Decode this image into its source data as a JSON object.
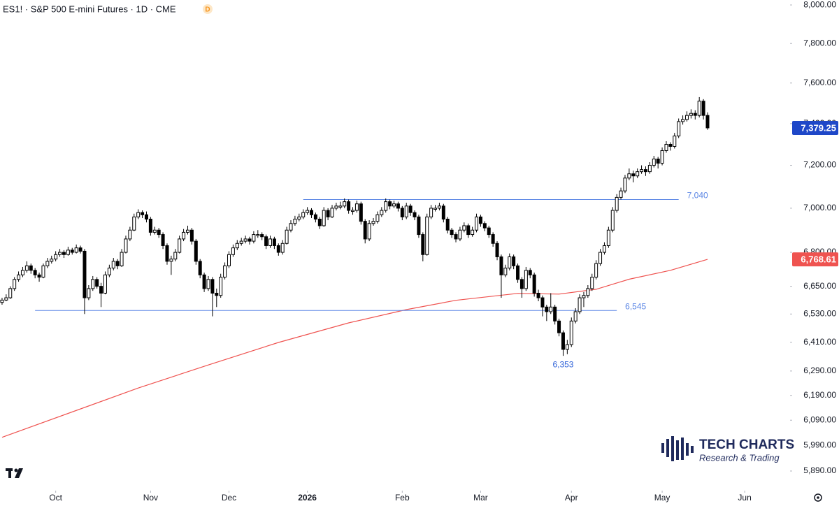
{
  "chart_data": {
    "type": "candlestick",
    "title": "ES1! · S&P 500 E-mini Futures · 1D · CME",
    "badge": "D",
    "log_scale": true,
    "up_color": "#ffffff",
    "down_color": "#000000",
    "ylim": [
      5820,
      8026
    ],
    "yticks": [
      {
        "value": 8000,
        "label": "8,000.00"
      },
      {
        "value": 7800,
        "label": "7,800.00"
      },
      {
        "value": 7600,
        "label": "7,600.00"
      },
      {
        "value": 7400,
        "label": "7,400.00"
      },
      {
        "value": 7200,
        "label": "7,200.00"
      },
      {
        "value": 7000,
        "label": "7,000.00"
      },
      {
        "value": 6800,
        "label": "6,800.00"
      },
      {
        "value": 6650,
        "label": "6,650.00"
      },
      {
        "value": 6530,
        "label": "6,530.00"
      },
      {
        "value": 6410,
        "label": "6,410.00"
      },
      {
        "value": 6290,
        "label": "6,290.00"
      },
      {
        "value": 6190,
        "label": "6,190.00"
      },
      {
        "value": 6090,
        "label": "6,090.00"
      },
      {
        "value": 5990,
        "label": "5,990.00"
      },
      {
        "value": 5890,
        "label": "5,890.00"
      }
    ],
    "xlim": [
      -0.5,
      191
    ],
    "xticks": [
      {
        "value": 13,
        "label": "Oct"
      },
      {
        "value": 36,
        "label": "Nov"
      },
      {
        "value": 55,
        "label": "Dec"
      },
      {
        "value": 74,
        "label": "2026"
      },
      {
        "value": 97,
        "label": "Feb"
      },
      {
        "value": 116,
        "label": "Mar"
      },
      {
        "value": 138,
        "label": "Apr"
      },
      {
        "value": 160,
        "label": "May"
      },
      {
        "value": 180,
        "label": "Jun"
      }
    ],
    "ohlc": [
      [
        6580,
        6600,
        6570,
        6590
      ],
      [
        6590,
        6615,
        6585,
        6600
      ],
      [
        6600,
        6650,
        6595,
        6640
      ],
      [
        6640,
        6690,
        6630,
        6680
      ],
      [
        6680,
        6715,
        6670,
        6700
      ],
      [
        6700,
        6735,
        6690,
        6720
      ],
      [
        6720,
        6760,
        6710,
        6740
      ],
      [
        6740,
        6750,
        6705,
        6720
      ],
      [
        6720,
        6730,
        6685,
        6700
      ],
      [
        6700,
        6710,
        6670,
        6690
      ],
      [
        6690,
        6750,
        6685,
        6740
      ],
      [
        6740,
        6775,
        6730,
        6760
      ],
      [
        6760,
        6785,
        6750,
        6770
      ],
      [
        6770,
        6805,
        6760,
        6790
      ],
      [
        6790,
        6815,
        6780,
        6800
      ],
      [
        6800,
        6810,
        6775,
        6790
      ],
      [
        6790,
        6825,
        6785,
        6810
      ],
      [
        6810,
        6820,
        6790,
        6800
      ],
      [
        6800,
        6835,
        6795,
        6820
      ],
      [
        6820,
        6830,
        6795,
        6805
      ],
      [
        6805,
        6815,
        6530,
        6600
      ],
      [
        6600,
        6655,
        6590,
        6640
      ],
      [
        6640,
        6695,
        6630,
        6680
      ],
      [
        6680,
        6690,
        6640,
        6650
      ],
      [
        6650,
        6665,
        6560,
        6620
      ],
      [
        6620,
        6715,
        6615,
        6700
      ],
      [
        6700,
        6745,
        6690,
        6730
      ],
      [
        6730,
        6775,
        6720,
        6760
      ],
      [
        6760,
        6770,
        6725,
        6740
      ],
      [
        6740,
        6815,
        6735,
        6800
      ],
      [
        6800,
        6875,
        6795,
        6860
      ],
      [
        6860,
        6915,
        6850,
        6900
      ],
      [
        6900,
        6975,
        6895,
        6960
      ],
      [
        6960,
        6995,
        6950,
        6980
      ],
      [
        6980,
        6990,
        6955,
        6970
      ],
      [
        6970,
        6985,
        6935,
        6950
      ],
      [
        6950,
        6960,
        6875,
        6890
      ],
      [
        6890,
        6915,
        6880,
        6900
      ],
      [
        6900,
        6910,
        6865,
        6880
      ],
      [
        6880,
        6890,
        6815,
        6830
      ],
      [
        6830,
        6840,
        6745,
        6760
      ],
      [
        6760,
        6785,
        6700,
        6770
      ],
      [
        6770,
        6815,
        6760,
        6800
      ],
      [
        6800,
        6875,
        6795,
        6860
      ],
      [
        6860,
        6905,
        6850,
        6890
      ],
      [
        6890,
        6920,
        6880,
        6900
      ],
      [
        6900,
        6910,
        6835,
        6850
      ],
      [
        6850,
        6860,
        6745,
        6760
      ],
      [
        6760,
        6770,
        6685,
        6700
      ],
      [
        6700,
        6710,
        6625,
        6640
      ],
      [
        6640,
        6695,
        6630,
        6680
      ],
      [
        6680,
        6690,
        6520,
        6620
      ],
      [
        6620,
        6640,
        6560,
        6610
      ],
      [
        6610,
        6705,
        6600,
        6690
      ],
      [
        6690,
        6755,
        6680,
        6740
      ],
      [
        6740,
        6805,
        6730,
        6790
      ],
      [
        6790,
        6835,
        6780,
        6820
      ],
      [
        6820,
        6855,
        6810,
        6840
      ],
      [
        6840,
        6865,
        6830,
        6850
      ],
      [
        6850,
        6875,
        6840,
        6860
      ],
      [
        6860,
        6870,
        6835,
        6850
      ],
      [
        6850,
        6895,
        6840,
        6880
      ],
      [
        6875,
        6900,
        6865,
        6880
      ],
      [
        6880,
        6890,
        6855,
        6870
      ],
      [
        6870,
        6880,
        6815,
        6830
      ],
      [
        6830,
        6875,
        6820,
        6860
      ],
      [
        6860,
        6870,
        6815,
        6830
      ],
      [
        6830,
        6840,
        6785,
        6800
      ],
      [
        6800,
        6855,
        6790,
        6840
      ],
      [
        6840,
        6915,
        6835,
        6900
      ],
      [
        6900,
        6945,
        6890,
        6930
      ],
      [
        6930,
        6965,
        6920,
        6950
      ],
      [
        6950,
        6975,
        6940,
        6960
      ],
      [
        6960,
        6995,
        6950,
        6980
      ],
      [
        6980,
        7005,
        6970,
        6990
      ],
      [
        6990,
        7000,
        6955,
        6970
      ],
      [
        6970,
        6980,
        6935,
        6950
      ],
      [
        6950,
        6960,
        6905,
        6920
      ],
      [
        6920,
        7005,
        6915,
        6990
      ],
      [
        6990,
        7000,
        6945,
        6960
      ],
      [
        6960,
        7015,
        6955,
        7000
      ],
      [
        7000,
        7025,
        6990,
        7010
      ],
      [
        7005,
        7030,
        6995,
        7010
      ],
      [
        7010,
        7045,
        7000,
        7030
      ],
      [
        7030,
        7040,
        6975,
        6990
      ],
      [
        6985,
        7005,
        6970,
        6990
      ],
      [
        6990,
        7035,
        6980,
        7020
      ],
      [
        7020,
        7030,
        6925,
        6940
      ],
      [
        6940,
        6950,
        6840,
        6860
      ],
      [
        6860,
        6945,
        6850,
        6930
      ],
      [
        6930,
        6955,
        6920,
        6940
      ],
      [
        6940,
        6985,
        6930,
        6970
      ],
      [
        6970,
        7005,
        6960,
        6990
      ],
      [
        6990,
        7045,
        6980,
        7030
      ],
      [
        7030,
        7040,
        6995,
        7010
      ],
      [
        7010,
        7035,
        7000,
        7020
      ],
      [
        7020,
        7030,
        6985,
        7000
      ],
      [
        7000,
        7010,
        6945,
        6960
      ],
      [
        6960,
        7025,
        6950,
        7010
      ],
      [
        7010,
        7020,
        6965,
        6980
      ],
      [
        6980,
        6990,
        6945,
        6960
      ],
      [
        6960,
        6970,
        6865,
        6880
      ],
      [
        6880,
        6890,
        6760,
        6790
      ],
      [
        6790,
        6975,
        6785,
        6960
      ],
      [
        6960,
        7015,
        6950,
        7000
      ],
      [
        6995,
        7015,
        6985,
        7000
      ],
      [
        7000,
        7025,
        6990,
        7010
      ],
      [
        7010,
        7020,
        6935,
        6950
      ],
      [
        6950,
        6960,
        6885,
        6900
      ],
      [
        6900,
        6910,
        6865,
        6880
      ],
      [
        6880,
        6890,
        6845,
        6860
      ],
      [
        6860,
        6915,
        6850,
        6900
      ],
      [
        6900,
        6935,
        6890,
        6920
      ],
      [
        6920,
        6930,
        6865,
        6880
      ],
      [
        6880,
        6915,
        6870,
        6900
      ],
      [
        6900,
        6975,
        6890,
        6960
      ],
      [
        6960,
        6970,
        6915,
        6930
      ],
      [
        6930,
        6940,
        6895,
        6910
      ],
      [
        6910,
        6920,
        6865,
        6880
      ],
      [
        6880,
        6890,
        6825,
        6840
      ],
      [
        6840,
        6850,
        6765,
        6780
      ],
      [
        6780,
        6790,
        6600,
        6700
      ],
      [
        6700,
        6745,
        6690,
        6730
      ],
      [
        6730,
        6795,
        6720,
        6780
      ],
      [
        6780,
        6790,
        6725,
        6740
      ],
      [
        6740,
        6750,
        6665,
        6680
      ],
      [
        6680,
        6690,
        6600,
        6640
      ],
      [
        6640,
        6735,
        6630,
        6720
      ],
      [
        6720,
        6730,
        6685,
        6700
      ],
      [
        6700,
        6710,
        6605,
        6620
      ],
      [
        6620,
        6635,
        6585,
        6600
      ],
      [
        6600,
        6610,
        6520,
        6560
      ],
      [
        6560,
        6570,
        6500,
        6540
      ],
      [
        6540,
        6620,
        6530,
        6560
      ],
      [
        6560,
        6570,
        6485,
        6500
      ],
      [
        6500,
        6510,
        6435,
        6450
      ],
      [
        6450,
        6460,
        6353,
        6380
      ],
      [
        6380,
        6420,
        6360,
        6400
      ],
      [
        6400,
        6515,
        6390,
        6500
      ],
      [
        6500,
        6555,
        6490,
        6540
      ],
      [
        6540,
        6615,
        6530,
        6600
      ],
      [
        6600,
        6625,
        6560,
        6610
      ],
      [
        6610,
        6655,
        6600,
        6640
      ],
      [
        6640,
        6705,
        6630,
        6690
      ],
      [
        6690,
        6765,
        6680,
        6750
      ],
      [
        6750,
        6815,
        6740,
        6800
      ],
      [
        6800,
        6845,
        6790,
        6830
      ],
      [
        6830,
        6915,
        6820,
        6900
      ],
      [
        6900,
        7005,
        6890,
        6990
      ],
      [
        6990,
        7065,
        6980,
        7050
      ],
      [
        7050,
        7095,
        7040,
        7080
      ],
      [
        7080,
        7155,
        7070,
        7140
      ],
      [
        7140,
        7185,
        7130,
        7160
      ],
      [
        7160,
        7175,
        7120,
        7150
      ],
      [
        7150,
        7185,
        7140,
        7170
      ],
      [
        7170,
        7200,
        7160,
        7180
      ],
      [
        7180,
        7195,
        7150,
        7170
      ],
      [
        7170,
        7215,
        7160,
        7200
      ],
      [
        7200,
        7245,
        7190,
        7230
      ],
      [
        7230,
        7240,
        7185,
        7210
      ],
      [
        7210,
        7285,
        7200,
        7270
      ],
      [
        7270,
        7315,
        7260,
        7300
      ],
      [
        7300,
        7310,
        7270,
        7290
      ],
      [
        7290,
        7355,
        7280,
        7340
      ],
      [
        7340,
        7425,
        7330,
        7410
      ],
      [
        7410,
        7440,
        7395,
        7420
      ],
      [
        7420,
        7460,
        7410,
        7440
      ],
      [
        7440,
        7470,
        7425,
        7450
      ],
      [
        7450,
        7465,
        7420,
        7440
      ],
      [
        7440,
        7530,
        7430,
        7510
      ],
      [
        7510,
        7520,
        7420,
        7440
      ],
      [
        7440,
        7455,
        7370,
        7379.25
      ]
    ],
    "moving_average": {
      "color": "#ef5350",
      "x": [
        0,
        33,
        50,
        67,
        84,
        98,
        110,
        125,
        135,
        144,
        152,
        162,
        171
      ],
      "values": [
        6022,
        6220,
        6315,
        6409,
        6492,
        6549,
        6589,
        6619,
        6616,
        6637,
        6681,
        6720,
        6768.61
      ],
      "label": {
        "value": 6768.61,
        "label": "6,768.61"
      }
    },
    "last_price": {
      "value": 7379.25,
      "label": "7,379.25",
      "color": "#1e47c8"
    },
    "levels": [
      {
        "value": 7040,
        "label": "7,040",
        "from": 73,
        "to": 164,
        "color": "#5b86e5"
      },
      {
        "value": 6545,
        "label": "6,545",
        "from": 8,
        "to": 149,
        "color": "#5b86e5"
      }
    ],
    "annotations": [
      {
        "text": "6,353",
        "value": 6353,
        "x": 136,
        "color": "#2f62d8"
      }
    ]
  },
  "watermark": {
    "name": "TECH CHARTS",
    "tagline": "Research & Trading"
  }
}
